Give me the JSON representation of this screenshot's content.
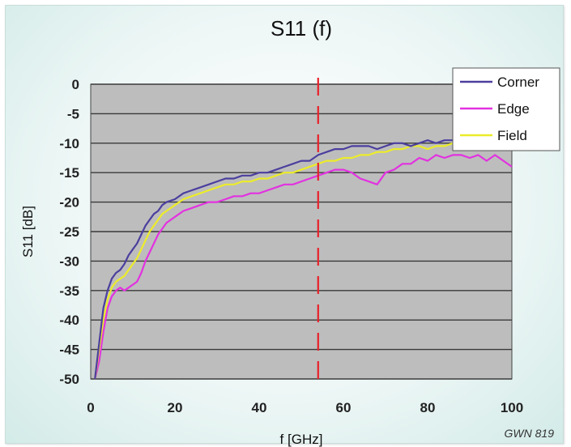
{
  "chart_data": {
    "type": "line",
    "title": "S11 (f)",
    "xlabel": "f [GHz]",
    "ylabel": "S11 [dB]",
    "xlim": [
      0,
      100
    ],
    "ylim": [
      -50,
      0
    ],
    "x_ticks": [
      0,
      20,
      40,
      60,
      80,
      100
    ],
    "y_ticks": [
      0,
      -5,
      -10,
      -15,
      -20,
      -25,
      -30,
      -35,
      -40,
      -45,
      -50
    ],
    "grid": true,
    "legend": "top-right",
    "credit": "GWN 819",
    "marker_line": {
      "x": 54,
      "style": "dashed",
      "color": "#e8212a"
    },
    "series": [
      {
        "name": "Corner",
        "color": "#4b3f9e",
        "x": [
          1,
          2,
          3,
          4,
          5,
          6,
          7,
          8,
          9,
          10,
          11,
          12,
          13,
          14,
          15,
          16,
          17,
          18,
          20,
          22,
          24,
          26,
          28,
          30,
          32,
          34,
          36,
          38,
          40,
          42,
          44,
          46,
          48,
          50,
          52,
          54,
          56,
          58,
          60,
          62,
          64,
          66,
          68,
          70,
          72,
          74,
          76,
          78,
          80,
          82,
          84,
          86,
          88
        ],
        "y": [
          -50,
          -44,
          -38,
          -35,
          -33,
          -32,
          -31.5,
          -30.5,
          -29,
          -28,
          -27,
          -25.5,
          -24,
          -23,
          -22,
          -21.5,
          -20.5,
          -20,
          -19.5,
          -18.5,
          -18,
          -17.5,
          -17,
          -16.5,
          -16,
          -16,
          -15.5,
          -15.5,
          -15,
          -15,
          -14.5,
          -14,
          -13.5,
          -13,
          -13,
          -12,
          -11.5,
          -11,
          -11,
          -10.5,
          -10.5,
          -10.5,
          -11,
          -10.5,
          -10,
          -10,
          -10.5,
          -10,
          -9.5,
          -10,
          -9.5,
          -9.5,
          -10
        ]
      },
      {
        "name": "Edge",
        "color": "#e232e0",
        "x": [
          1,
          2,
          3,
          4,
          5,
          6,
          7,
          8,
          9,
          10,
          11,
          12,
          13,
          14,
          15,
          16,
          17,
          18,
          20,
          22,
          24,
          26,
          28,
          30,
          32,
          34,
          36,
          38,
          40,
          42,
          44,
          46,
          48,
          50,
          52,
          54,
          56,
          58,
          60,
          62,
          64,
          66,
          68,
          70,
          72,
          74,
          76,
          78,
          80,
          82,
          84,
          86,
          88,
          90,
          92,
          94,
          96,
          98,
          100
        ],
        "y": [
          -50,
          -47,
          -42,
          -38,
          -36,
          -35,
          -34.5,
          -35,
          -34.5,
          -34,
          -33.5,
          -32,
          -30,
          -28.5,
          -27,
          -25.5,
          -24.5,
          -23.5,
          -22.5,
          -21.5,
          -21,
          -20.5,
          -20,
          -20,
          -19.5,
          -19,
          -19,
          -18.5,
          -18.5,
          -18,
          -17.5,
          -17,
          -17,
          -16.5,
          -16,
          -15.5,
          -15,
          -14.5,
          -14.5,
          -15,
          -16,
          -16.5,
          -17,
          -15,
          -14.5,
          -13.5,
          -13.5,
          -12.5,
          -13,
          -12,
          -12.5,
          -12,
          -12,
          -12.5,
          -12,
          -13,
          -12,
          -13,
          -14
        ]
      },
      {
        "name": "Field",
        "color": "#ecec2a",
        "x": [
          1,
          2,
          3,
          4,
          5,
          6,
          7,
          8,
          9,
          10,
          11,
          12,
          13,
          14,
          15,
          16,
          17,
          18,
          20,
          22,
          24,
          26,
          28,
          30,
          32,
          34,
          36,
          38,
          40,
          42,
          44,
          46,
          48,
          50,
          52,
          54,
          56,
          58,
          60,
          62,
          64,
          66,
          68,
          70,
          72,
          74,
          76,
          78,
          80,
          82,
          84,
          86,
          88
        ],
        "y": [
          -50,
          -45,
          -40,
          -36.5,
          -34.5,
          -33.5,
          -33,
          -32.5,
          -31.5,
          -30.5,
          -29.5,
          -28,
          -26.5,
          -25,
          -24,
          -23,
          -22,
          -21.5,
          -20.5,
          -19.5,
          -19,
          -18.5,
          -18,
          -17.5,
          -17,
          -17,
          -16.5,
          -16.5,
          -16,
          -16,
          -15.5,
          -15,
          -15,
          -14.5,
          -14,
          -13.5,
          -13,
          -13,
          -12.5,
          -12.5,
          -12,
          -12,
          -11.5,
          -11.5,
          -11,
          -11,
          -10.5,
          -10.5,
          -11,
          -10.5,
          -10.5,
          -10,
          -10.5
        ]
      }
    ]
  }
}
